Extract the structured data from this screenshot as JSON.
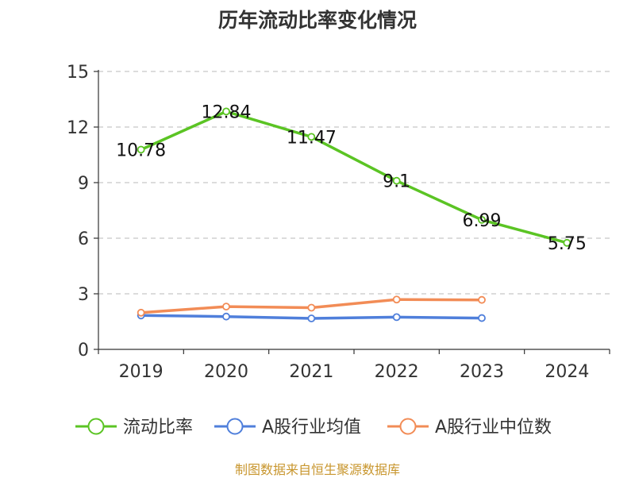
{
  "source_text": "制图数据来自恒生聚源数据库",
  "chart_data": {
    "type": "line",
    "title": "历年流动比率变化情况",
    "xlabel": "",
    "ylabel": "",
    "categories": [
      "2019",
      "2020",
      "2021",
      "2022",
      "2023",
      "2024"
    ],
    "ylim": [
      0,
      15
    ],
    "yticks": [
      0,
      3,
      6,
      9,
      12,
      15
    ],
    "grid": true,
    "legend_position": "bottom",
    "series": [
      {
        "name": "流动比率",
        "color": "#5bc424",
        "values": [
          10.78,
          12.84,
          11.47,
          9.1,
          6.99,
          5.75
        ],
        "labels": [
          "10.78",
          "12.84",
          "11.47",
          "9.1",
          "6.99",
          "5.75"
        ]
      },
      {
        "name": "A股行业均值",
        "color": "#4f7fdb",
        "values": [
          1.83,
          1.77,
          1.67,
          1.74,
          1.69,
          null
        ]
      },
      {
        "name": "A股行业中位数",
        "color": "#f28c56",
        "values": [
          1.98,
          2.31,
          2.25,
          2.69,
          2.67,
          null
        ]
      }
    ]
  }
}
